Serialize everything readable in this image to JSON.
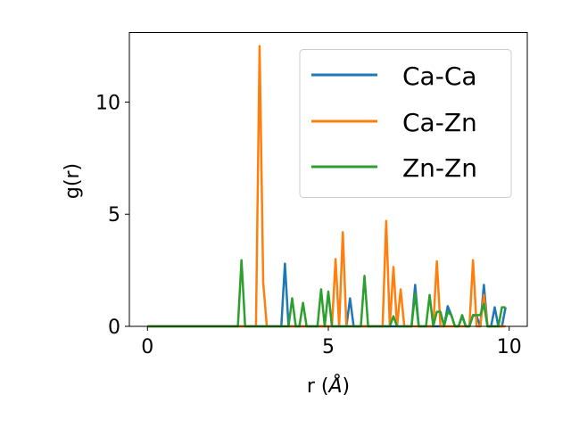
{
  "chart_data": {
    "type": "line",
    "xlabel_base": "r (",
    "xlabel_unit": "Å",
    "xlabel_end": ")",
    "ylabel": "g(r)",
    "xlim": [
      -0.5,
      10.5
    ],
    "ylim": [
      0,
      13.1
    ],
    "xticks": [
      0,
      5,
      10
    ],
    "yticks": [
      0,
      5,
      10
    ],
    "grid": false,
    "legend_position": "top-right",
    "x": [
      0,
      0.1,
      0.2,
      0.3,
      0.4,
      0.5,
      0.6,
      0.7,
      0.8,
      0.9,
      1.0,
      1.1,
      1.2,
      1.3,
      1.4,
      1.5,
      1.6,
      1.7,
      1.8,
      1.9,
      2.0,
      2.1,
      2.2,
      2.3,
      2.4,
      2.5,
      2.6,
      2.7,
      2.8,
      2.9,
      3.0,
      3.1,
      3.2,
      3.3,
      3.4,
      3.5,
      3.6,
      3.7,
      3.8,
      3.9,
      4.0,
      4.1,
      4.2,
      4.3,
      4.4,
      4.5,
      4.6,
      4.7,
      4.8,
      4.9,
      5.0,
      5.1,
      5.2,
      5.3,
      5.4,
      5.5,
      5.6,
      5.7,
      5.8,
      5.9,
      6.0,
      6.1,
      6.2,
      6.3,
      6.4,
      6.5,
      6.6,
      6.7,
      6.8,
      6.9,
      7.0,
      7.1,
      7.2,
      7.3,
      7.4,
      7.5,
      7.6,
      7.7,
      7.8,
      7.9,
      8.0,
      8.1,
      8.2,
      8.3,
      8.4,
      8.5,
      8.6,
      8.7,
      8.8,
      8.9,
      9.0,
      9.1,
      9.2,
      9.3,
      9.4,
      9.5,
      9.6,
      9.7,
      9.8,
      9.9
    ],
    "series": [
      {
        "name": "Ca-Ca",
        "color": "#1f77b4",
        "values": [
          0,
          0,
          0,
          0,
          0,
          0,
          0,
          0,
          0,
          0,
          0,
          0,
          0,
          0,
          0,
          0,
          0,
          0,
          0,
          0,
          0,
          0,
          0,
          0,
          0,
          0,
          0,
          0,
          0,
          0,
          0,
          0,
          0,
          0,
          0,
          0,
          0,
          0,
          2.8,
          0,
          0,
          0,
          0,
          0,
          0,
          0,
          0,
          0,
          0,
          0,
          0,
          0,
          0,
          0,
          0,
          0,
          1.25,
          0,
          0,
          0,
          0,
          0,
          0,
          0,
          0,
          0,
          0,
          0,
          0,
          0,
          0,
          0,
          0,
          0,
          1.85,
          0,
          0,
          0,
          0,
          0,
          0,
          0,
          0,
          0.9,
          0.5,
          0,
          0,
          0.45,
          0,
          0,
          0.5,
          0.45,
          0,
          1.85,
          0,
          0,
          0.85,
          0,
          0,
          0.85
        ]
      },
      {
        "name": "Ca-Zn",
        "color": "#ff7f0e",
        "values": [
          0,
          0,
          0,
          0,
          0,
          0,
          0,
          0,
          0,
          0,
          0,
          0,
          0,
          0,
          0,
          0,
          0,
          0,
          0,
          0,
          0,
          0,
          0,
          0,
          0,
          0,
          0,
          0,
          0,
          0,
          0,
          12.5,
          1.95,
          0,
          0,
          0,
          0,
          0,
          0,
          0,
          0,
          0,
          0,
          0,
          0,
          0,
          0,
          0,
          0,
          0,
          0,
          0,
          3.0,
          0,
          4.2,
          0,
          0,
          0,
          0,
          0,
          0,
          0,
          0,
          0,
          0,
          0,
          4.7,
          0,
          2.65,
          0,
          1.65,
          0,
          0,
          0,
          0,
          0,
          0,
          0,
          0,
          0,
          2.9,
          0,
          0,
          0,
          0,
          0,
          0,
          0,
          0,
          0,
          2.95,
          0,
          0,
          1.4,
          0,
          0,
          0,
          0,
          0,
          0
        ]
      },
      {
        "name": "Zn-Zn",
        "color": "#2ca02c",
        "values": [
          0,
          0,
          0,
          0,
          0,
          0,
          0,
          0,
          0,
          0,
          0,
          0,
          0,
          0,
          0,
          0,
          0,
          0,
          0,
          0,
          0,
          0,
          0,
          0,
          0,
          0,
          2.95,
          0,
          0,
          0,
          0,
          0,
          0,
          0,
          0,
          0,
          0,
          0,
          0,
          0,
          1.25,
          0,
          0,
          1.05,
          0,
          0,
          0,
          0,
          1.65,
          0,
          1.55,
          0,
          0,
          0,
          0,
          0,
          0,
          0,
          0,
          0,
          2.25,
          0,
          0,
          0,
          0,
          0,
          0,
          0,
          0.45,
          0,
          0,
          0,
          0,
          0,
          1.45,
          0,
          0,
          0,
          1.4,
          0,
          0.65,
          0.65,
          0,
          0.65,
          0.5,
          0,
          0,
          0.5,
          0,
          0,
          0.5,
          0.5,
          0.5,
          1.0,
          0,
          0,
          0,
          0,
          0.85,
          0.85
        ]
      }
    ]
  }
}
